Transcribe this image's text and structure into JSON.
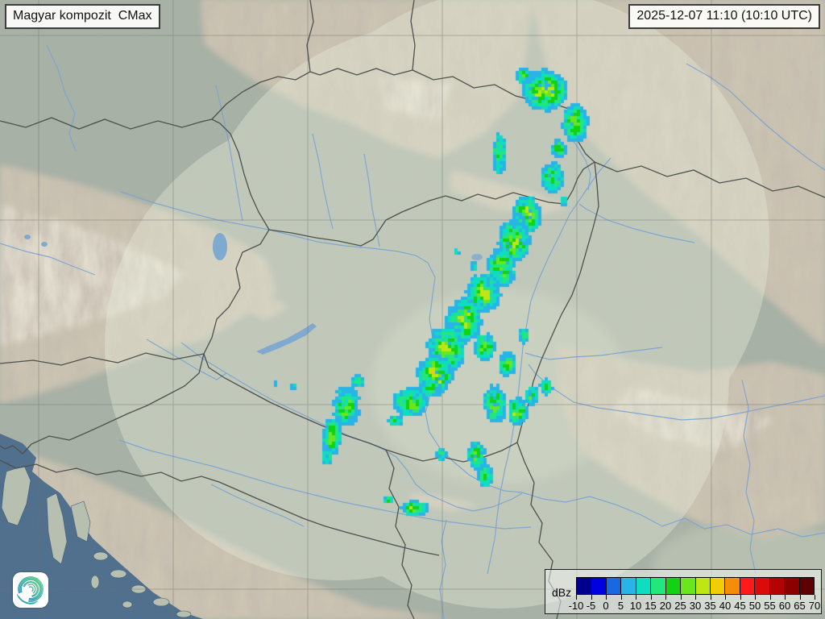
{
  "header": {
    "title": "Magyar kompozit  CMax",
    "timestamp": "2025-12-07 11:10 (10:10 UTC)"
  },
  "legend": {
    "unit_label": "dBz",
    "tick_labels": [
      "-10",
      "-5",
      "0",
      "5",
      "10",
      "15",
      "20",
      "25",
      "30",
      "35",
      "40",
      "45",
      "50",
      "55",
      "60",
      "65",
      "70"
    ],
    "colors": [
      "#00008f",
      "#0000e1",
      "#1769e1",
      "#28b4e6",
      "#0fdcc0",
      "#23e67d",
      "#12d212",
      "#69e61e",
      "#bee614",
      "#f0cd05",
      "#f58c0a",
      "#ff1919",
      "#dc0a0a",
      "#b40303",
      "#8c0000",
      "#5f0000"
    ]
  },
  "map": {
    "colors": {
      "land_base": "#a8b1a6",
      "coverage_wash": "#e9efdc",
      "sea": "#4e6e8c",
      "island": "#b6bfb0",
      "lake": "#7fa9d0",
      "river": "#78a3d2",
      "border": "#4b4f4b",
      "graticule": "#6a6f6a",
      "mountain": "#cdc5b2",
      "mountain_core": "#e9e3d6",
      "plain_light": "#c6cfba"
    }
  },
  "radar": {
    "cell_size": 4,
    "clusters": [
      [
        675,
        110,
        26,
        24,
        36,
        1
      ],
      [
        648,
        92,
        10,
        10,
        26,
        2
      ],
      [
        712,
        150,
        16,
        24,
        29,
        3
      ],
      [
        692,
        183,
        10,
        12,
        24,
        4
      ],
      [
        618,
        190,
        9,
        28,
        25,
        5
      ],
      [
        684,
        218,
        14,
        20,
        28,
        6
      ],
      [
        698,
        247,
        5,
        8,
        20,
        7
      ],
      [
        652,
        265,
        17,
        24,
        30,
        8
      ],
      [
        636,
        298,
        20,
        26,
        31,
        9
      ],
      [
        620,
        330,
        18,
        24,
        29,
        10
      ],
      [
        598,
        362,
        21,
        24,
        32,
        11
      ],
      [
        574,
        396,
        21,
        27,
        31,
        12
      ],
      [
        552,
        432,
        23,
        28,
        33,
        13
      ],
      [
        538,
        464,
        21,
        25,
        35,
        14
      ],
      [
        600,
        428,
        13,
        18,
        26,
        15
      ],
      [
        628,
        450,
        11,
        16,
        25,
        16
      ],
      [
        648,
        415,
        8,
        10,
        22,
        17
      ],
      [
        428,
        502,
        17,
        25,
        27,
        18
      ],
      [
        410,
        540,
        12,
        22,
        28,
        19
      ],
      [
        443,
        472,
        9,
        9,
        22,
        20
      ],
      [
        404,
        564,
        7,
        11,
        25,
        21
      ],
      [
        362,
        478,
        4,
        4,
        18,
        22
      ],
      [
        340,
        474,
        3,
        3,
        16,
        23
      ],
      [
        508,
        497,
        21,
        17,
        31,
        24
      ],
      [
        533,
        480,
        13,
        11,
        26,
        25
      ],
      [
        489,
        520,
        10,
        8,
        24,
        26
      ],
      [
        612,
        500,
        15,
        23,
        29,
        27
      ],
      [
        641,
        509,
        12,
        17,
        33,
        28
      ],
      [
        658,
        489,
        9,
        12,
        25,
        29
      ],
      [
        676,
        478,
        8,
        10,
        24,
        30
      ],
      [
        590,
        563,
        11,
        19,
        29,
        31
      ],
      [
        601,
        589,
        9,
        14,
        30,
        32
      ],
      [
        546,
        562,
        7,
        10,
        23,
        33
      ],
      [
        513,
        629,
        16,
        10,
        33,
        34
      ],
      [
        480,
        618,
        6,
        5,
        20,
        35
      ],
      [
        586,
        330,
        5,
        7,
        20,
        36
      ],
      [
        565,
        310,
        4,
        5,
        18,
        37
      ]
    ]
  }
}
